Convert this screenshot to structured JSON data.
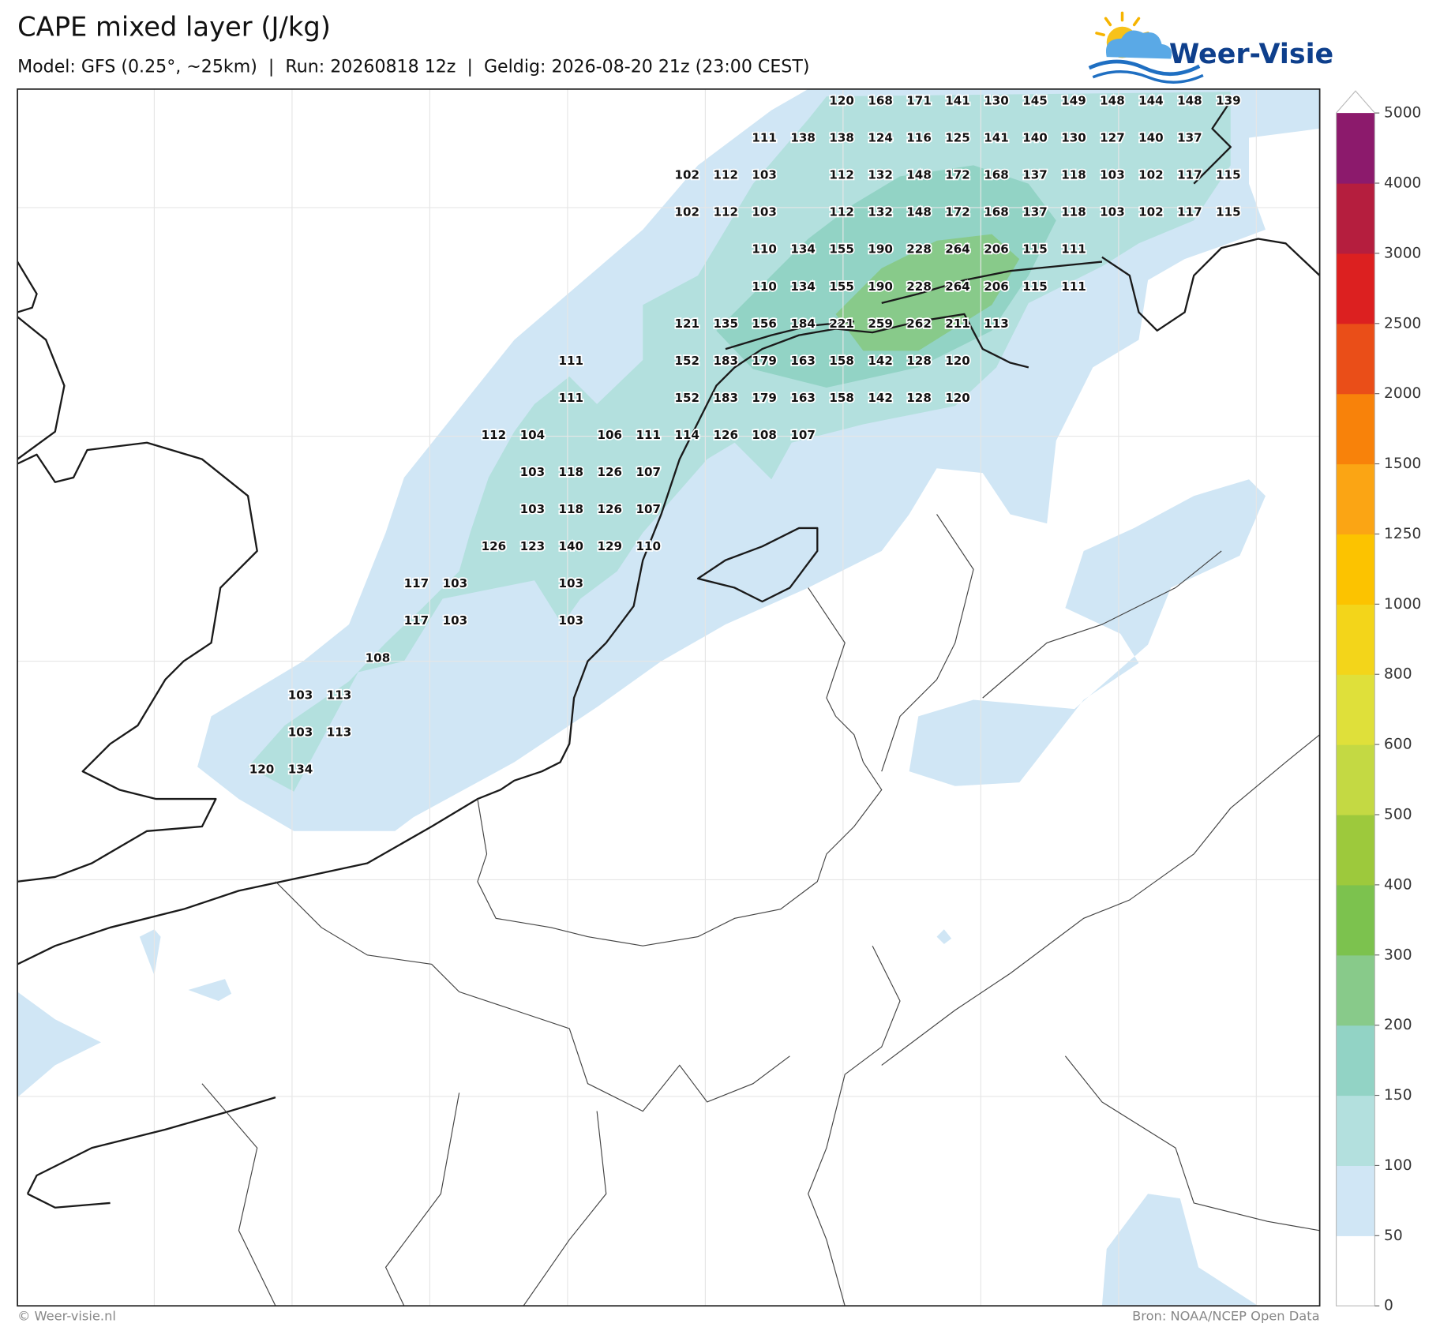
{
  "header": {
    "title": "CAPE mixed layer (J/kg)",
    "subtitle": "Model: GFS (0.25°, ~25km)  |  Run: 20260818 12z  |  Geldig: 2026-08-20 21z (23:00 CEST)"
  },
  "logo": {
    "text": "Weer-Visie"
  },
  "colorbar": {
    "levels": [
      0,
      50,
      100,
      150,
      200,
      300,
      400,
      500,
      600,
      800,
      1000,
      1250,
      1500,
      2000,
      2500,
      3000,
      4000,
      5000
    ],
    "colors": [
      "#ffffff",
      "#d0e6f5",
      "#b3e0de",
      "#92d3c5",
      "#88ca8a",
      "#7cc24e",
      "#9dc93c",
      "#c4d943",
      "#dfe03a",
      "#f3d51a",
      "#fcc300",
      "#fba514",
      "#f8820a",
      "#ea4e18",
      "#dc2020",
      "#b51e3e",
      "#8c1a6c"
    ]
  },
  "map": {
    "value_grid": [
      [
        null,
        null,
        null,
        null,
        null,
        null,
        null,
        null,
        null,
        null,
        null,
        null,
        null,
        null,
        null,
        120,
        168,
        171,
        141,
        130,
        145,
        149,
        148,
        144,
        148,
        139
      ],
      [
        null,
        null,
        null,
        null,
        null,
        null,
        null,
        null,
        null,
        null,
        null,
        null,
        null,
        111,
        138,
        138,
        124,
        116,
        125,
        141,
        140,
        130,
        127,
        140,
        137,
        null
      ],
      [
        null,
        null,
        null,
        null,
        null,
        null,
        null,
        null,
        null,
        null,
        null,
        102,
        112,
        103,
        null,
        112,
        132,
        148,
        172,
        168,
        137,
        118,
        103,
        102,
        117,
        115
      ],
      [
        null,
        null,
        null,
        null,
        null,
        null,
        null,
        null,
        null,
        null,
        null,
        102,
        112,
        103,
        null,
        112,
        132,
        148,
        172,
        168,
        137,
        118,
        103,
        102,
        117,
        115
      ],
      [
        null,
        null,
        null,
        null,
        null,
        null,
        null,
        null,
        null,
        null,
        null,
        null,
        null,
        110,
        134,
        155,
        190,
        228,
        264,
        206,
        115,
        111,
        null,
        null,
        null,
        null
      ],
      [
        null,
        null,
        null,
        null,
        null,
        null,
        null,
        null,
        null,
        null,
        null,
        null,
        null,
        110,
        134,
        155,
        190,
        228,
        264,
        206,
        115,
        111,
        null,
        null,
        null,
        null
      ],
      [
        null,
        null,
        null,
        null,
        null,
        null,
        null,
        null,
        null,
        null,
        null,
        121,
        135,
        156,
        184,
        221,
        259,
        262,
        211,
        113,
        null,
        null,
        null,
        null,
        null,
        null
      ],
      [
        null,
        null,
        null,
        null,
        null,
        null,
        null,
        null,
        111,
        null,
        null,
        152,
        183,
        179,
        163,
        158,
        142,
        128,
        120,
        null,
        null,
        null,
        null,
        null,
        null,
        null
      ],
      [
        null,
        null,
        null,
        null,
        null,
        null,
        null,
        null,
        111,
        null,
        null,
        152,
        183,
        179,
        163,
        158,
        142,
        128,
        120,
        null,
        null,
        null,
        null,
        null,
        null,
        null
      ],
      [
        null,
        null,
        null,
        null,
        null,
        null,
        112,
        104,
        null,
        106,
        111,
        114,
        126,
        108,
        107,
        null,
        null,
        null,
        null,
        null,
        null,
        null,
        null,
        null,
        null,
        null
      ],
      [
        null,
        null,
        null,
        null,
        null,
        null,
        null,
        103,
        118,
        126,
        107,
        null,
        null,
        null,
        null,
        null,
        null,
        null,
        null,
        null,
        null,
        null,
        null,
        null,
        null,
        null
      ],
      [
        null,
        null,
        null,
        null,
        null,
        null,
        null,
        103,
        118,
        126,
        107,
        null,
        null,
        null,
        null,
        null,
        null,
        null,
        null,
        null,
        null,
        null,
        null,
        null,
        null,
        null
      ],
      [
        null,
        null,
        null,
        null,
        null,
        null,
        126,
        123,
        140,
        129,
        110,
        null,
        null,
        null,
        null,
        null,
        null,
        null,
        null,
        null,
        null,
        null,
        null,
        null,
        null,
        null
      ],
      [
        null,
        null,
        null,
        null,
        117,
        103,
        null,
        null,
        103,
        null,
        null,
        null,
        null,
        null,
        null,
        null,
        null,
        null,
        null,
        null,
        null,
        null,
        null,
        null,
        null,
        null
      ],
      [
        null,
        null,
        null,
        null,
        117,
        103,
        null,
        null,
        103,
        null,
        null,
        null,
        null,
        null,
        null,
        null,
        null,
        null,
        null,
        null,
        null,
        null,
        null,
        null,
        null,
        null
      ],
      [
        null,
        null,
        null,
        108,
        null,
        null,
        null,
        null,
        null,
        null,
        null,
        null,
        null,
        null,
        null,
        null,
        null,
        null,
        null,
        null,
        null,
        null,
        null,
        null,
        null,
        null
      ],
      [
        null,
        103,
        113,
        null,
        null,
        null,
        null,
        null,
        null,
        null,
        null,
        null,
        null,
        null,
        null,
        null,
        null,
        null,
        null,
        null,
        null,
        null,
        null,
        null,
        null,
        null
      ],
      [
        null,
        103,
        113,
        null,
        null,
        null,
        null,
        null,
        null,
        null,
        null,
        null,
        null,
        null,
        null,
        null,
        null,
        null,
        null,
        null,
        null,
        null,
        null,
        null,
        null,
        null
      ],
      [
        120,
        134,
        null,
        null,
        null,
        null,
        null,
        null,
        null,
        null,
        null,
        null,
        null,
        null,
        null,
        null,
        null,
        null,
        null,
        null,
        null,
        null,
        null,
        null,
        null,
        null
      ]
    ]
  },
  "footer": {
    "left": "© Weer-visie.nl",
    "right": "Bron: NOAA/NCEP Open Data"
  }
}
